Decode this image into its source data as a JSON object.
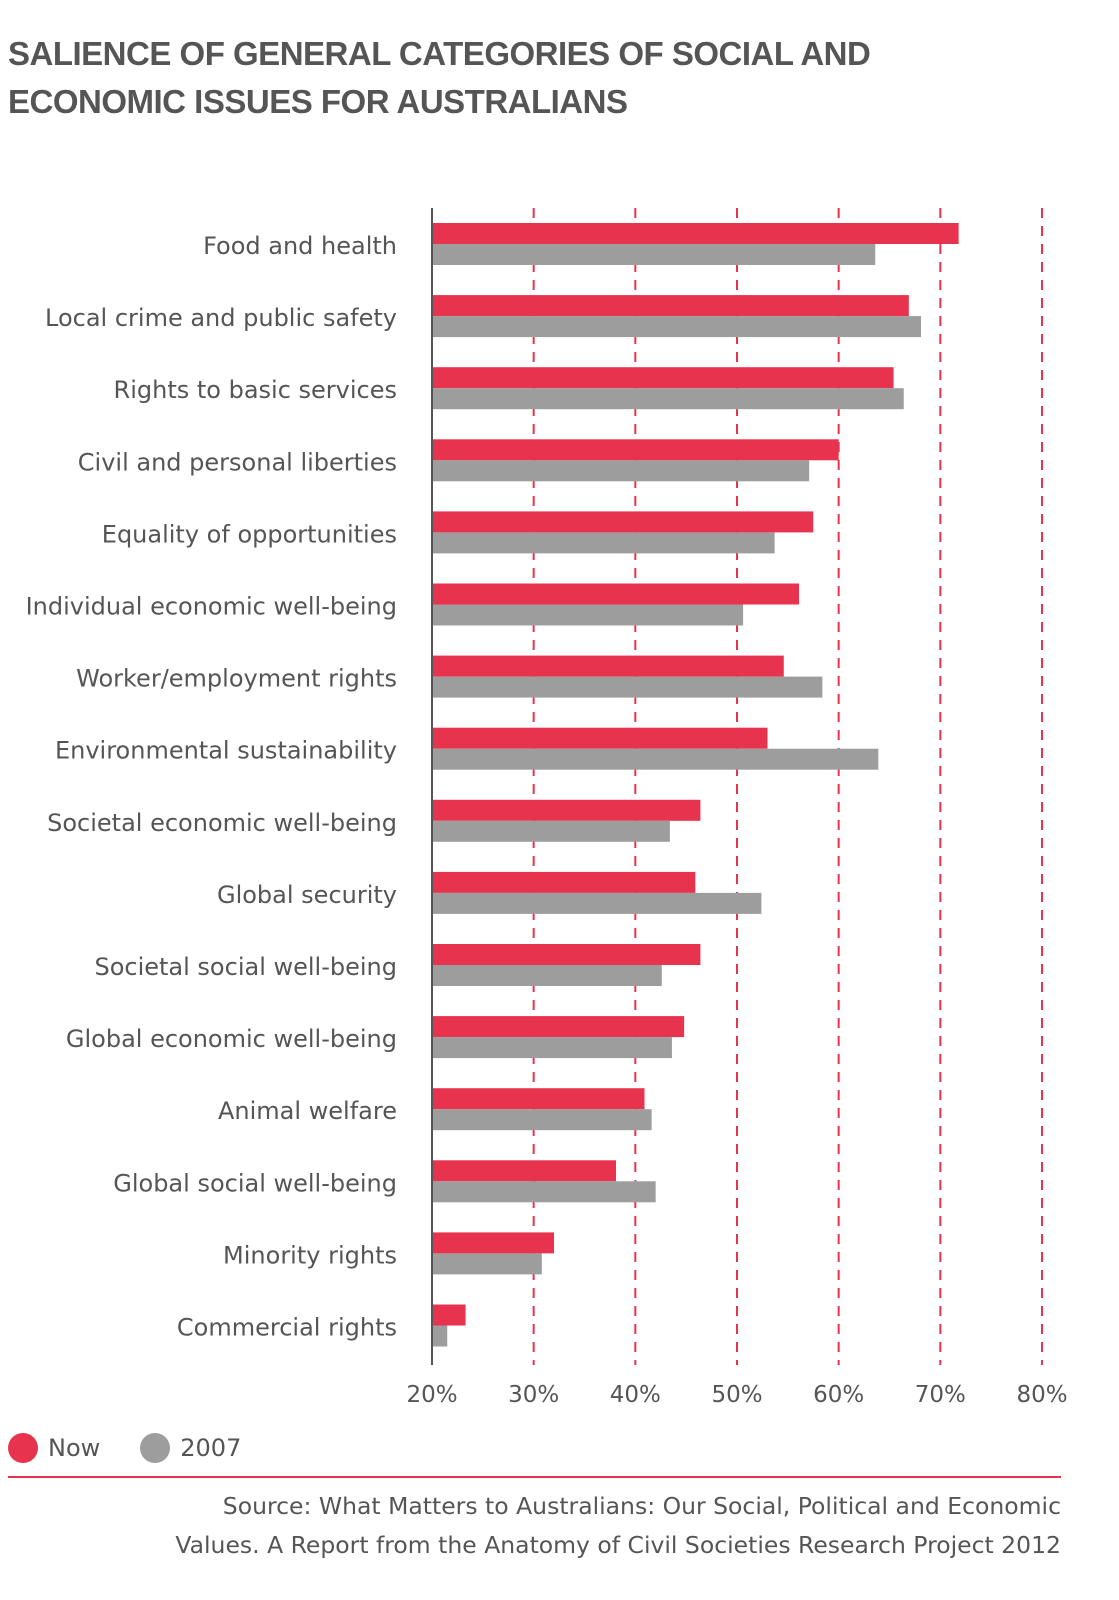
{
  "chart_data": {
    "type": "bar",
    "orientation": "horizontal",
    "title": "SALIENCE OF GENERAL CATEGORIES OF SOCIAL AND ECONOMIC ISSUES FOR AUSTRALIANS",
    "title_lines": [
      "SALIENCE OF GENERAL CATEGORIES OF SOCIAL AND",
      "ECONOMIC ISSUES FOR AUSTRALIANS"
    ],
    "xlabel": "",
    "ylabel": "",
    "xlim": [
      20,
      80
    ],
    "x_ticks": [
      20,
      30,
      40,
      50,
      60,
      70,
      80
    ],
    "x_tick_labels": [
      "20%",
      "30%",
      "40%",
      "50%",
      "60%",
      "70%",
      "80%"
    ],
    "grid": "vertical dashed",
    "legend_position": "bottom-left",
    "categories": [
      "Food and health",
      "Local crime and public safety",
      "Rights to basic services",
      "Civil and personal liberties",
      "Equality of opportunities",
      "Individual economic well-being",
      "Worker/employment rights",
      "Environmental sustainability",
      "Societal economic well-being",
      "Global security",
      "Societal social well-being",
      "Global economic well-being",
      "Animal welfare",
      "Global social well-being",
      "Minority rights",
      "Commercial rights"
    ],
    "series": [
      {
        "name": "Now",
        "color": "#e8334e",
        "values": [
          71.8,
          66.9,
          65.4,
          60.0,
          57.5,
          56.1,
          54.6,
          53.0,
          46.4,
          45.9,
          46.4,
          44.8,
          40.9,
          38.1,
          32.0,
          23.3
        ]
      },
      {
        "name": "2007",
        "color": "#9d9d9d",
        "values": [
          63.6,
          68.1,
          66.4,
          57.1,
          53.7,
          50.6,
          58.4,
          63.9,
          43.4,
          52.4,
          42.6,
          43.6,
          41.6,
          42.0,
          30.8,
          21.5
        ]
      }
    ]
  },
  "colors": {
    "accent": "#e8334e",
    "secondary": "#9d9d9d",
    "text": "#555555",
    "axis": "#555555"
  },
  "legend": {
    "items": [
      {
        "label": "Now",
        "color": "#e8334e"
      },
      {
        "label": "2007",
        "color": "#9d9d9d"
      }
    ]
  },
  "source": {
    "lines": [
      "Source: What Matters to Australians: Our Social, Political and Economic",
      "Values. A Report from the Anatomy of Civil Societies Research Project 2012"
    ]
  }
}
